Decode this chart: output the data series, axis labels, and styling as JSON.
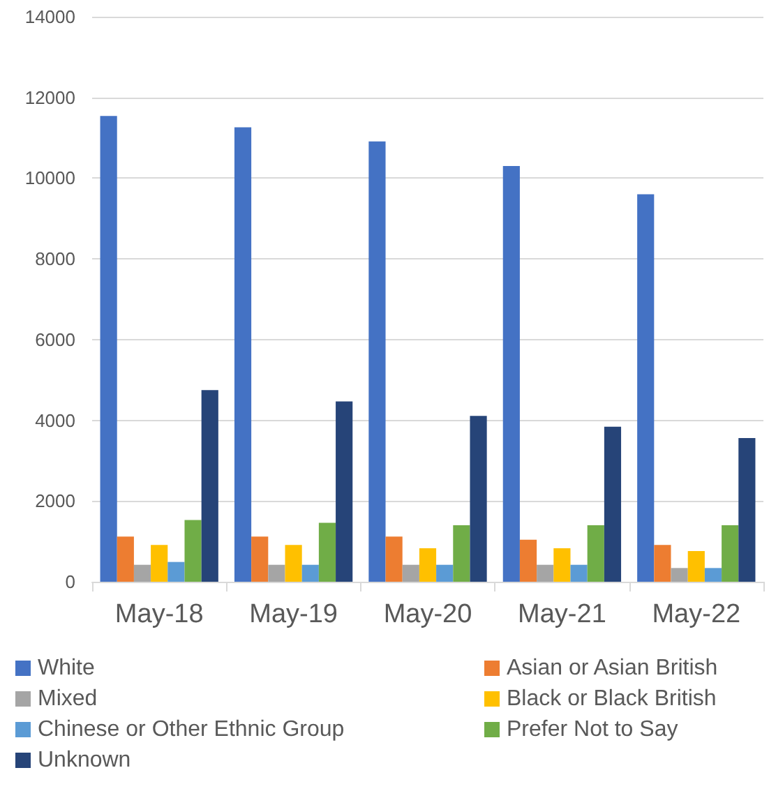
{
  "chart_data": {
    "type": "bar",
    "categories": [
      "May-18",
      "May-19",
      "May-20",
      "May-21",
      "May-22"
    ],
    "series": [
      {
        "name": "White",
        "color": "#4472c4",
        "values": [
          11540,
          11260,
          10910,
          10300,
          9600
        ]
      },
      {
        "name": "Asian or Asian British",
        "color": "#ed7d31",
        "values": [
          1120,
          1120,
          1120,
          1040,
          910
        ]
      },
      {
        "name": "Mixed",
        "color": "#a5a5a5",
        "values": [
          420,
          420,
          420,
          420,
          340
        ]
      },
      {
        "name": "Black or Black British",
        "color": "#ffc000",
        "values": [
          910,
          910,
          830,
          830,
          760
        ]
      },
      {
        "name": "Chinese or Other Ethnic Group",
        "color": "#5b9bd5",
        "values": [
          490,
          420,
          420,
          420,
          340
        ]
      },
      {
        "name": "Prefer Not to Say",
        "color": "#70ad47",
        "values": [
          1530,
          1460,
          1400,
          1400,
          1400
        ]
      },
      {
        "name": "Unknown",
        "color": "#264478",
        "values": [
          4750,
          4470,
          4110,
          3840,
          3560
        ]
      }
    ],
    "ylim": [
      0,
      14000
    ],
    "yticks": [
      0,
      2000,
      4000,
      6000,
      8000,
      10000,
      12000,
      14000
    ],
    "grid": "y",
    "legend": "bottom"
  }
}
